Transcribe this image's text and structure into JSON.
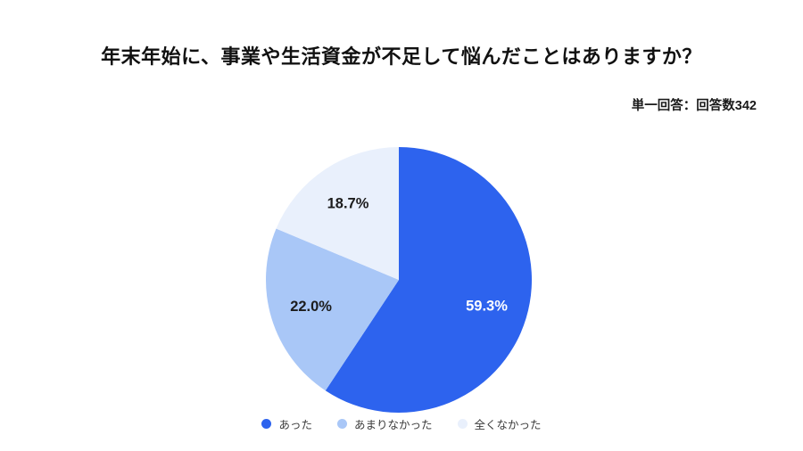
{
  "title": "年末年始に、事業や生活資金が不足して悩んだことはありますか？",
  "note": "単一回答：回答数342",
  "respondent_count": "342",
  "chart_data": {
    "type": "pie",
    "title": "年末年始に、事業や生活資金が不足して悩んだことはありますか？",
    "annotation": "単一回答：回答数342",
    "categories": [
      "あった",
      "あまりなかった",
      "全くなかった"
    ],
    "values": [
      59.3,
      22.0,
      18.7
    ],
    "unit": "%",
    "data_labels": [
      "59.3%",
      "22.0%",
      "18.7%"
    ],
    "colors": [
      "#2D63EE",
      "#A9C7F7",
      "#E9F0FC"
    ],
    "label_colors": [
      "#ffffff",
      "#1c1c1c",
      "#1c1c1c"
    ],
    "start_angle_deg": 0,
    "direction": "clockwise",
    "legend_position": "bottom",
    "background": "#ffffff"
  }
}
